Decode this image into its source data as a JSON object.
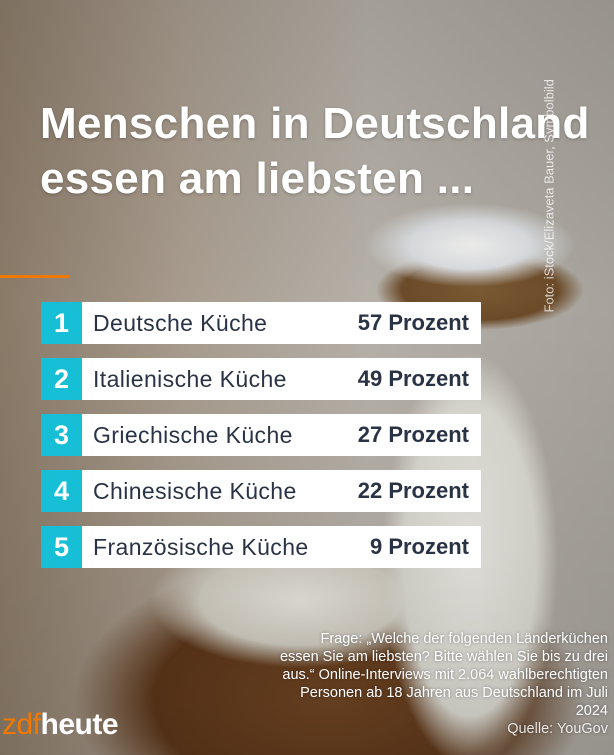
{
  "title": "Menschen in Deutschland essen am liebsten ...",
  "photo_credit": "Foto: iStock/Elizaveta Bauer, Symbolbild",
  "ranking": [
    {
      "rank": "1",
      "label": "Deutsche Küche",
      "value": "57 Prozent"
    },
    {
      "rank": "2",
      "label": "Italienische Küche",
      "value": "49 Prozent"
    },
    {
      "rank": "3",
      "label": "Griechische Küche",
      "value": "27 Prozent"
    },
    {
      "rank": "4",
      "label": "Chinesische Küche",
      "value": "22 Prozent"
    },
    {
      "rank": "5",
      "label": "Französische Küche",
      "value": "9 Prozent"
    }
  ],
  "footnote": "Frage: „Welche der folgenden Länderküchen essen Sie am liebsten? Bitte wählen Sie bis zu drei aus.“ Online-Interviews mit 2.064 wahlberechtigten Personen ab 18 Jahren aus Deutschland im Juli 2024",
  "source": "Quelle: YouGov",
  "logo": {
    "part1": "zdf",
    "part2": "heute"
  },
  "colors": {
    "accent": "#17bfd6",
    "brand": "#f07800",
    "text": "#2a3346"
  }
}
